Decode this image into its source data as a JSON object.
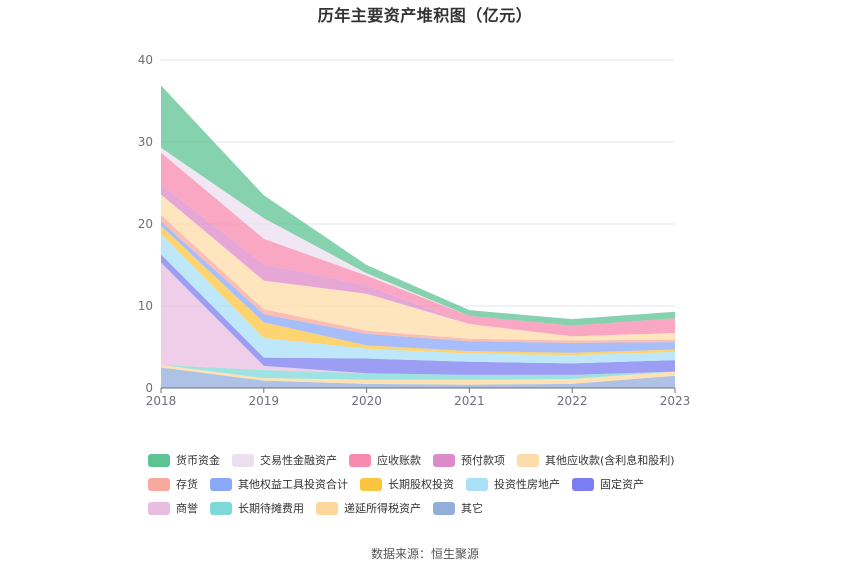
{
  "chart_data": {
    "type": "area",
    "title": "历年主要资产堆积图（亿元）",
    "xlabel": "",
    "ylabel": "",
    "x": [
      "2018",
      "2019",
      "2020",
      "2021",
      "2022",
      "2023"
    ],
    "ylim": [
      0,
      40
    ],
    "yticks": [
      0,
      10,
      20,
      30,
      40
    ],
    "stacked": true,
    "grid": true,
    "legend_position": "bottom",
    "series": [
      {
        "name": "其它",
        "color": "#92aedc",
        "values": [
          2.5,
          0.9,
          0.5,
          0.4,
          0.5,
          1.5
        ]
      },
      {
        "name": "递延所得税资产",
        "color": "#fdd89a",
        "values": [
          0.3,
          0.3,
          0.5,
          0.6,
          0.6,
          0.5
        ]
      },
      {
        "name": "长期待摊费用",
        "color": "#7fd8d8",
        "values": [
          0.0,
          1.0,
          0.8,
          0.6,
          0.5,
          0.0
        ]
      },
      {
        "name": "商誉",
        "color": "#e8bde0",
        "values": [
          12.5,
          0.5,
          0.0,
          0.0,
          0.0,
          0.0
        ]
      },
      {
        "name": "固定资产",
        "color": "#7b7ef0",
        "values": [
          1.0,
          1.0,
          1.8,
          1.6,
          1.4,
          1.4
        ]
      },
      {
        "name": "投资性房地产",
        "color": "#a8e0f8",
        "values": [
          2.5,
          2.4,
          1.2,
          1.0,
          1.0,
          1.0
        ]
      },
      {
        "name": "长期股权投资",
        "color": "#fcc540",
        "values": [
          1.0,
          1.9,
          0.4,
          0.3,
          0.3,
          0.3
        ]
      },
      {
        "name": "其他权益工具投资合计",
        "color": "#8aa8f8",
        "values": [
          0.5,
          1.0,
          1.4,
          1.2,
          1.2,
          0.9
        ]
      },
      {
        "name": "存货",
        "color": "#f8a89c",
        "values": [
          0.8,
          0.6,
          0.4,
          0.3,
          0.3,
          0.3
        ]
      },
      {
        "name": "其他应收款(含利息和股利)",
        "color": "#fddca8",
        "values": [
          2.5,
          3.5,
          4.5,
          1.8,
          0.5,
          0.8
        ]
      },
      {
        "name": "预付款项",
        "color": "#dd8ac8",
        "values": [
          1.2,
          2.0,
          1.0,
          0.0,
          0.0,
          0.0
        ]
      },
      {
        "name": "应收账款",
        "color": "#f88ab0",
        "values": [
          3.9,
          3.1,
          1.2,
          1.0,
          1.3,
          1.8
        ]
      },
      {
        "name": "交易性金融资产",
        "color": "#ecdff0",
        "values": [
          0.6,
          2.5,
          0.3,
          0.0,
          0.0,
          0.0
        ]
      },
      {
        "name": "货币资金",
        "color": "#5ec393",
        "values": [
          7.6,
          2.8,
          1.0,
          0.7,
          0.8,
          0.8
        ]
      }
    ],
    "legend_rows": [
      [
        "货币资金",
        "交易性金融资产",
        "应收账款",
        "预付款项",
        "其他应收款(含利息和股利)"
      ],
      [
        "存货",
        "其他权益工具投资合计",
        "长期股权投资",
        "投资性房地产",
        "固定资产"
      ],
      [
        "商誉",
        "长期待摊费用",
        "递延所得税资产",
        "其它"
      ]
    ]
  },
  "source_text": "数据来源：恒生聚源"
}
